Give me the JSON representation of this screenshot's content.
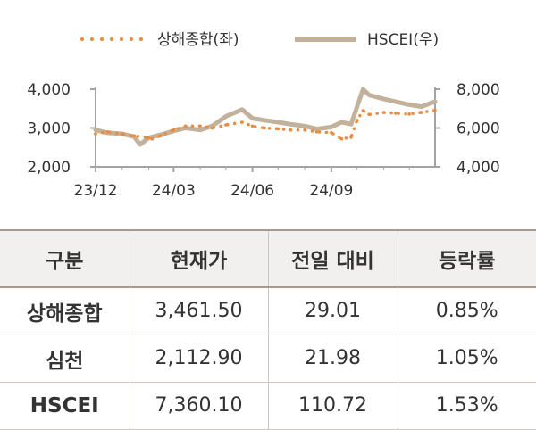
{
  "chart_data": {
    "type": "line",
    "legend": {
      "placement": "top-center",
      "items": [
        {
          "label": "상해종합(좌)",
          "style": "dotted",
          "color": "#ee8a3c"
        },
        {
          "label": "HSCEI(우)",
          "style": "solid",
          "color": "#c2b29c"
        }
      ]
    },
    "x_ticks": [
      "23/12",
      "24/03",
      "24/06",
      "24/09"
    ],
    "y_left": {
      "ticks": [
        "2,000",
        "3,000",
        "4,000"
      ],
      "range": [
        2000,
        4000
      ]
    },
    "y_right": {
      "ticks": [
        "4,000",
        "6,000",
        "8,000"
      ],
      "range": [
        4000,
        8000
      ]
    },
    "grid": false,
    "series": [
      {
        "name": "상해종합(좌)",
        "axis": "left",
        "color": "#ee8a3c",
        "x": [
          "2023-12-01",
          "2023-12-15",
          "2024-01-01",
          "2024-01-15",
          "2024-02-01",
          "2024-02-05",
          "2024-02-15",
          "2024-03-01",
          "2024-03-15",
          "2024-04-01",
          "2024-04-15",
          "2024-05-01",
          "2024-05-20",
          "2024-06-01",
          "2024-06-15",
          "2024-07-01",
          "2024-07-15",
          "2024-08-01",
          "2024-08-15",
          "2024-09-01",
          "2024-09-13",
          "2024-09-24",
          "2024-10-01",
          "2024-10-08",
          "2024-10-15",
          "2024-11-01",
          "2024-11-15",
          "2024-12-01",
          "2024-12-15",
          "2024-12-31"
        ],
        "values": [
          2850,
          2900,
          2850,
          2800,
          2750,
          2720,
          2800,
          2950,
          3050,
          3050,
          3000,
          3080,
          3150,
          3050,
          3000,
          2980,
          2950,
          2950,
          2900,
          2880,
          2720,
          2760,
          3200,
          3450,
          3350,
          3400,
          3380,
          3360,
          3400,
          3460
        ]
      },
      {
        "name": "HSCEI(우)",
        "axis": "right",
        "color": "#c2b29c",
        "x": [
          "2023-12-01",
          "2023-12-15",
          "2024-01-01",
          "2024-01-15",
          "2024-01-22",
          "2024-02-01",
          "2024-02-15",
          "2024-03-01",
          "2024-03-15",
          "2024-04-01",
          "2024-04-15",
          "2024-05-01",
          "2024-05-20",
          "2024-06-01",
          "2024-06-15",
          "2024-07-01",
          "2024-07-15",
          "2024-08-01",
          "2024-08-15",
          "2024-09-01",
          "2024-09-13",
          "2024-09-24",
          "2024-10-01",
          "2024-10-08",
          "2024-10-15",
          "2024-11-01",
          "2024-11-15",
          "2024-12-01",
          "2024-12-15",
          "2024-12-31"
        ],
        "values": [
          5900,
          5750,
          5700,
          5550,
          5150,
          5500,
          5650,
          5850,
          6000,
          5900,
          6100,
          6600,
          6950,
          6500,
          6400,
          6300,
          6200,
          6100,
          5950,
          6050,
          6300,
          6200,
          7100,
          8000,
          7700,
          7500,
          7350,
          7200,
          7100,
          7360
        ]
      }
    ]
  },
  "table": {
    "headers": [
      "구분",
      "현재가",
      "전일 대비",
      "등락률"
    ],
    "rows": [
      {
        "name": "상해종합",
        "price": "3,461.50",
        "change": "29.01",
        "rate": "0.85%"
      },
      {
        "name": "심천",
        "price": "2,112.90",
        "change": "21.98",
        "rate": "1.05%"
      },
      {
        "name": "HSCEI",
        "price": "7,360.10",
        "change": "110.72",
        "rate": "1.53%"
      }
    ]
  }
}
